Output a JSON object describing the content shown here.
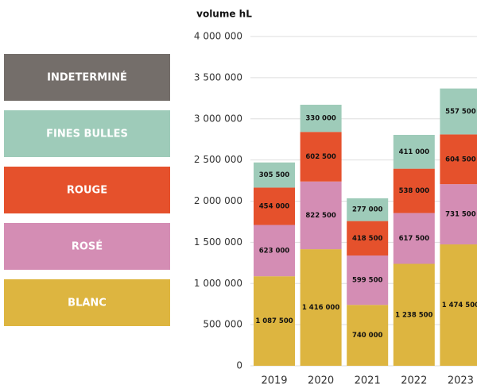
{
  "chart_data": {
    "type": "stacked_bar",
    "y_label": "volume hL",
    "categories": [
      "2019",
      "2020",
      "2021",
      "2022",
      "2023"
    ],
    "series": [
      {
        "name": "BLANC",
        "color": "#ddb540",
        "values": [
          1087500,
          1416000,
          740000,
          1238500,
          1474500
        ],
        "value_labels": [
          "1 087 500",
          "1 416 000",
          "740 000",
          "1 238 500",
          "1 474 500"
        ]
      },
      {
        "name": "ROSÉ",
        "color": "#d48db4",
        "values": [
          623000,
          822500,
          599500,
          617500,
          731500
        ],
        "value_labels": [
          "623 000",
          "822 500",
          "599 500",
          "617 500",
          "731 500"
        ]
      },
      {
        "name": "ROUGE",
        "color": "#e5512c",
        "values": [
          454000,
          602500,
          418500,
          538000,
          604500
        ],
        "value_labels": [
          "454 000",
          "602 500",
          "418 500",
          "538 000",
          "604 500"
        ]
      },
      {
        "name": "FINES BULLES",
        "color": "#9ecbb9",
        "values": [
          305500,
          330000,
          277000,
          411000,
          557500
        ],
        "value_labels": [
          "305 500",
          "330 000",
          "277 000",
          "411 000",
          "557 500"
        ]
      },
      {
        "name": "INDETERMINÉ",
        "color": "#746e6a",
        "values": [
          0,
          0,
          0,
          0,
          0
        ]
      }
    ],
    "ylim": [
      0,
      4000000
    ],
    "yticks": [
      0,
      {
        "value": 500000,
        "label": "500 000"
      },
      {
        "value": 1000000,
        "label": "1 000 000"
      },
      {
        "value": 1500000,
        "label": "1 500 000"
      },
      {
        "value": 2000000,
        "label": "2 000 000"
      },
      {
        "value": 2500000,
        "label": "2 500 000"
      },
      {
        "value": 3000000,
        "label": "3 000 000"
      },
      {
        "value": 3500000,
        "label": "3 500 000"
      },
      {
        "value": 4000000,
        "label": "4 000 000"
      }
    ],
    "grid": true
  }
}
